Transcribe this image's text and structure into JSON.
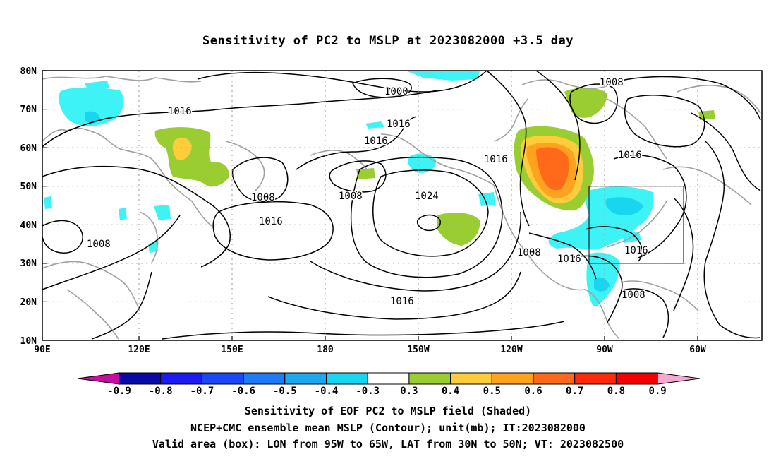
{
  "title": "Sensitivity of PC2 to MSLP at 2023082000 +3.5 day",
  "map": {
    "lat_ticks": [
      "80N",
      "70N",
      "60N",
      "50N",
      "40N",
      "30N",
      "20N",
      "10N"
    ],
    "lon_ticks": [
      "90E",
      "120E",
      "150E",
      "180",
      "150W",
      "120W",
      "90W",
      "60W"
    ],
    "contour_labels": [
      "1000",
      "1008",
      "1016",
      "1016",
      "1016",
      "1016",
      "1008",
      "1008",
      "1016",
      "1008",
      "1024",
      "1016",
      "1008",
      "1016",
      "1016",
      "1008"
    ],
    "valid_box": {
      "lon": [
        -95,
        -65
      ],
      "lat": [
        30,
        50
      ]
    }
  },
  "colorbar": {
    "labels": [
      "-0.9",
      "-0.8",
      "-0.7",
      "-0.6",
      "-0.5",
      "-0.4",
      "-0.3",
      "0.3",
      "0.4",
      "0.5",
      "0.6",
      "0.7",
      "0.8",
      "0.9"
    ],
    "colors": [
      "#0a0aa8",
      "#1c1cf0",
      "#1a48f5",
      "#1f7af5",
      "#1ea8f0",
      "#18d6f0",
      "#3ef3f5",
      "#ffffff",
      "#9acd32",
      "#ffcd3c",
      "#ffa21e",
      "#ff6a1a",
      "#ff2a0a",
      "#f50000"
    ],
    "low_cap": "#c40ea0",
    "high_cap": "#f5a8d0"
  },
  "captions": {
    "line1": "Sensitivity of EOF PC2 to MSLP field (Shaded)",
    "line2": "NCEP+CMC ensemble mean MSLP (Contour); unit(mb); IT:2023082000",
    "line3": "Valid area (box): LON from 95W to 65W, LAT from 30N to 50N; VT: 2023082500"
  }
}
